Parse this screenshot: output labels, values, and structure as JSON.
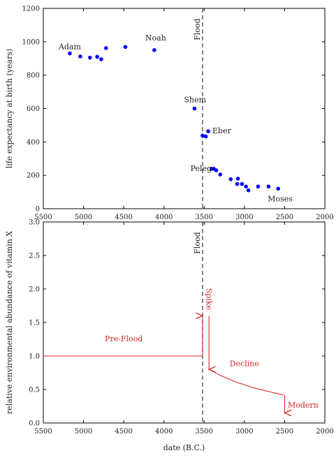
{
  "chart_data": [
    {
      "type": "scatter",
      "ylabel": "life expectancy at birth (years)",
      "xlim": [
        5500,
        2000
      ],
      "ylim": [
        0,
        1200
      ],
      "xticks": [
        5500,
        5000,
        4500,
        4000,
        3500,
        3000,
        2500,
        2000
      ],
      "yticks": [
        0,
        200,
        400,
        600,
        800,
        1000,
        1200
      ],
      "marker_color": "#0000ff",
      "series": [
        {
          "x": [
            5170,
            5040,
            4920,
            4830,
            4780,
            4720,
            4480,
            4120,
            3620,
            3520,
            3480,
            3450,
            3410,
            3380,
            3350,
            3300,
            3170,
            3090,
            3080,
            3030,
            2980,
            2950,
            2830,
            2700,
            2580
          ],
          "y": [
            930,
            912,
            905,
            910,
            895,
            962,
            969,
            950,
            600,
            438,
            433,
            464,
            239,
            239,
            230,
            205,
            177,
            148,
            180,
            148,
            133,
            110,
            133,
            133,
            120
          ]
        }
      ],
      "annotations": [
        {
          "text": "Adam",
          "x": 5170,
          "y": 930
        },
        {
          "text": "Noah",
          "x": 4120,
          "y": 950
        },
        {
          "text": "Shem",
          "x": 3620,
          "y": 600
        },
        {
          "text": "Eber",
          "x": 3450,
          "y": 464
        },
        {
          "text": "Peleg",
          "x": 3410,
          "y": 239
        },
        {
          "text": "Moses",
          "x": 2580,
          "y": 120
        }
      ],
      "vline": {
        "x": 3520,
        "label": "Flood"
      }
    },
    {
      "type": "line",
      "xlabel": "date (B.C.)",
      "ylabel": "relative environmental abundance of vitamin X",
      "xlim": [
        5500,
        2000
      ],
      "ylim": [
        0,
        3.0
      ],
      "xticks": [
        5500,
        5000,
        4500,
        4000,
        3500,
        3000,
        2500,
        2000
      ],
      "yticks": [
        0.0,
        0.5,
        1.0,
        1.5,
        2.0,
        2.5,
        3.0
      ],
      "line_color": "#d62728",
      "series": [
        {
          "x": [
            5500,
            3520
          ],
          "y": [
            1.0,
            1.0
          ]
        },
        {
          "x": [
            3440,
            3300,
            3100,
            2900,
            2700,
            2520
          ],
          "y": [
            0.8,
            0.71,
            0.61,
            0.53,
            0.47,
            0.42
          ]
        }
      ],
      "arrows": [
        {
          "x": 3520,
          "from": 1.0,
          "to": 1.6,
          "direction": "up"
        },
        {
          "x": 3440,
          "from": 1.6,
          "to": 0.8,
          "direction": "down"
        },
        {
          "x": 2500,
          "from": 0.42,
          "to": 0.15,
          "direction": "down"
        }
      ],
      "labels": [
        {
          "text": "Pre-Flood",
          "x": 4500,
          "y": 1.22
        },
        {
          "text": "Spike",
          "x": 3470,
          "y": 1.85,
          "rotated": true
        },
        {
          "text": "Decline",
          "x": 3000,
          "y": 0.85
        },
        {
          "text": "Modern",
          "x": 2270,
          "y": 0.23
        }
      ],
      "vline": {
        "x": 3520,
        "label": "Flood"
      }
    }
  ]
}
